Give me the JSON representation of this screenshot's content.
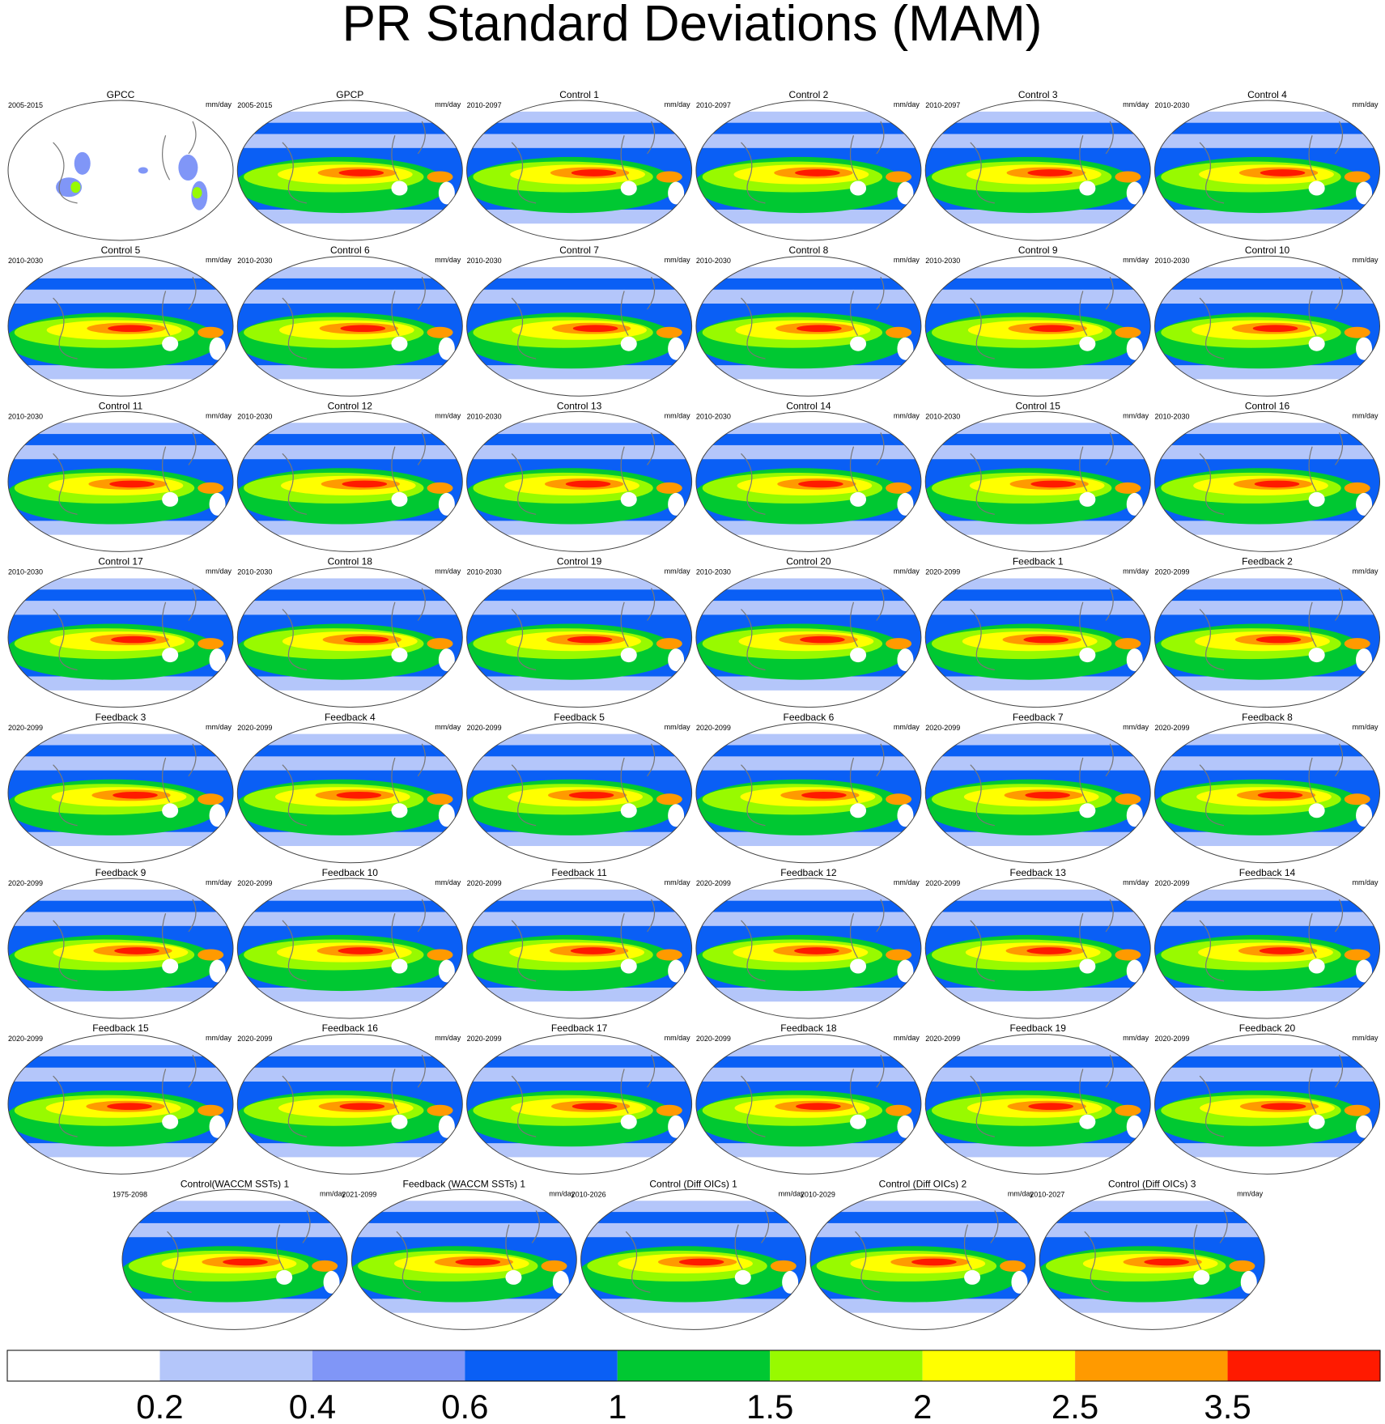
{
  "title": "PR Standard Deviations (MAM)",
  "panels": [
    {
      "title": "GPCC",
      "period": "2005-2015",
      "units": "mm/day"
    },
    {
      "title": "GPCP",
      "period": "2005-2015",
      "units": "mm/day"
    },
    {
      "title": "Control 1",
      "period": "2010-2097",
      "units": "mm/day"
    },
    {
      "title": "Control 2",
      "period": "2010-2097",
      "units": "mm/day"
    },
    {
      "title": "Control 3",
      "period": "2010-2097",
      "units": "mm/day"
    },
    {
      "title": "Control 4",
      "period": "2010-2030",
      "units": "mm/day"
    },
    {
      "title": "Control 5",
      "period": "2010-2030",
      "units": "mm/day"
    },
    {
      "title": "Control 6",
      "period": "2010-2030",
      "units": "mm/day"
    },
    {
      "title": "Control 7",
      "period": "2010-2030",
      "units": "mm/day"
    },
    {
      "title": "Control 8",
      "period": "2010-2030",
      "units": "mm/day"
    },
    {
      "title": "Control 9",
      "period": "2010-2030",
      "units": "mm/day"
    },
    {
      "title": "Control 10",
      "period": "2010-2030",
      "units": "mm/day"
    },
    {
      "title": "Control 11",
      "period": "2010-2030",
      "units": "mm/day"
    },
    {
      "title": "Control 12",
      "period": "2010-2030",
      "units": "mm/day"
    },
    {
      "title": "Control 13",
      "period": "2010-2030",
      "units": "mm/day"
    },
    {
      "title": "Control 14",
      "period": "2010-2030",
      "units": "mm/day"
    },
    {
      "title": "Control 15",
      "period": "2010-2030",
      "units": "mm/day"
    },
    {
      "title": "Control 16",
      "period": "2010-2030",
      "units": "mm/day"
    },
    {
      "title": "Control 17",
      "period": "2010-2030",
      "units": "mm/day"
    },
    {
      "title": "Control 18",
      "period": "2010-2030",
      "units": "mm/day"
    },
    {
      "title": "Control 19",
      "period": "2010-2030",
      "units": "mm/day"
    },
    {
      "title": "Control 20",
      "period": "2010-2030",
      "units": "mm/day"
    },
    {
      "title": "Feedback 1",
      "period": "2020-2099",
      "units": "mm/day"
    },
    {
      "title": "Feedback 2",
      "period": "2020-2099",
      "units": "mm/day"
    },
    {
      "title": "Feedback 3",
      "period": "2020-2099",
      "units": "mm/day"
    },
    {
      "title": "Feedback 4",
      "period": "2020-2099",
      "units": "mm/day"
    },
    {
      "title": "Feedback 5",
      "period": "2020-2099",
      "units": "mm/day"
    },
    {
      "title": "Feedback 6",
      "period": "2020-2099",
      "units": "mm/day"
    },
    {
      "title": "Feedback 7",
      "period": "2020-2099",
      "units": "mm/day"
    },
    {
      "title": "Feedback 8",
      "period": "2020-2099",
      "units": "mm/day"
    },
    {
      "title": "Feedback 9",
      "period": "2020-2099",
      "units": "mm/day"
    },
    {
      "title": "Feedback 10",
      "period": "2020-2099",
      "units": "mm/day"
    },
    {
      "title": "Feedback 11",
      "period": "2020-2099",
      "units": "mm/day"
    },
    {
      "title": "Feedback 12",
      "period": "2020-2099",
      "units": "mm/day"
    },
    {
      "title": "Feedback 13",
      "period": "2020-2099",
      "units": "mm/day"
    },
    {
      "title": "Feedback 14",
      "period": "2020-2099",
      "units": "mm/day"
    },
    {
      "title": "Feedback 15",
      "period": "2020-2099",
      "units": "mm/day"
    },
    {
      "title": "Feedback 16",
      "period": "2020-2099",
      "units": "mm/day"
    },
    {
      "title": "Feedback 17",
      "period": "2020-2099",
      "units": "mm/day"
    },
    {
      "title": "Feedback 18",
      "period": "2020-2099",
      "units": "mm/day"
    },
    {
      "title": "Feedback 19",
      "period": "2020-2099",
      "units": "mm/day"
    },
    {
      "title": "Feedback 20",
      "period": "2020-2099",
      "units": "mm/day"
    },
    {
      "title": "Control(WACCM SSTs) 1",
      "period": "1975-2098",
      "units": "mm/day"
    },
    {
      "title": "Feedback (WACCM SSTs) 1",
      "period": "2021-2099",
      "units": "mm/day"
    },
    {
      "title": "Control (Diff OICs) 1",
      "period": "2010-2026",
      "units": "mm/day"
    },
    {
      "title": "Control (Diff OICs) 2",
      "period": "2010-2029",
      "units": "mm/day"
    },
    {
      "title": "Control (Diff OICs) 3",
      "period": "2010-2027",
      "units": "mm/day"
    }
  ],
  "colorbar": {
    "levels": [
      0.2,
      0.4,
      0.6,
      1,
      1.5,
      2,
      2.5,
      3.5
    ],
    "colors": [
      "#ffffff",
      "#b4c6fa",
      "#8096f7",
      "#0a5ff5",
      "#00c832",
      "#98fa00",
      "#ffff00",
      "#ff9a00",
      "#ff1a00"
    ]
  }
}
